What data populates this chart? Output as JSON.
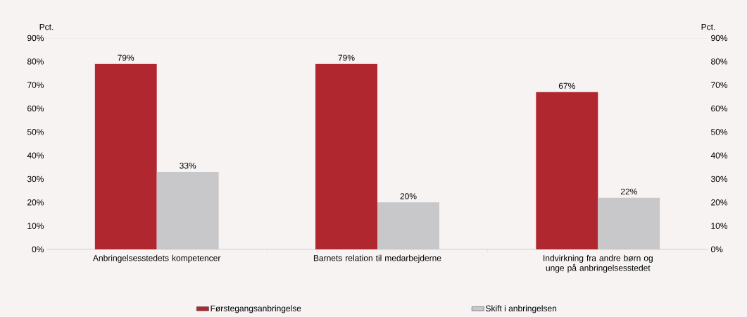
{
  "chart_data": {
    "type": "bar",
    "ylabel": "Pct.",
    "y2label": "Pct.",
    "categories": [
      "Anbringelsesstedets kompetencer",
      "Barnets relation til medarbejderne",
      "Indvirkning fra andre børn og unge på anbringelsesstedet"
    ],
    "series": [
      {
        "name": "Førstegangsanbringelse",
        "color": "#b0272f",
        "values": [
          79,
          79,
          67
        ],
        "value_labels": [
          "79%",
          "79%",
          "67%"
        ]
      },
      {
        "name": "Skift i anbringelsen",
        "color": "#c8c8ca",
        "values": [
          33,
          20,
          22
        ],
        "value_labels": [
          "33%",
          "20%",
          "22%"
        ]
      }
    ],
    "ylim": [
      0,
      90
    ],
    "yticks": [
      {
        "value": 0,
        "label": "0%"
      },
      {
        "value": 10,
        "label": "10%"
      },
      {
        "value": 20,
        "label": "20%"
      },
      {
        "value": 30,
        "label": "30%"
      },
      {
        "value": 40,
        "label": "40%"
      },
      {
        "value": 50,
        "label": "50%"
      },
      {
        "value": 60,
        "label": "60%"
      },
      {
        "value": 70,
        "label": "70%"
      },
      {
        "value": 80,
        "label": "80%"
      },
      {
        "value": 90,
        "label": "90%"
      }
    ],
    "y2lim": [
      0,
      90
    ],
    "y2ticks": [
      {
        "value": 0,
        "label": "0%"
      },
      {
        "value": 10,
        "label": "10%"
      },
      {
        "value": 20,
        "label": "20%"
      },
      {
        "value": 30,
        "label": "30%"
      },
      {
        "value": 40,
        "label": "40%"
      },
      {
        "value": 50,
        "label": "50%"
      },
      {
        "value": 60,
        "label": "60%"
      },
      {
        "value": 70,
        "label": "70%"
      },
      {
        "value": 80,
        "label": "80%"
      },
      {
        "value": 90,
        "label": "90%"
      }
    ],
    "legend": "bottom",
    "grid": false
  }
}
